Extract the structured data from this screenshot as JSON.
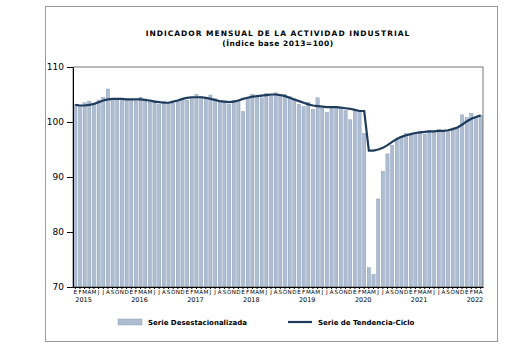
{
  "chart_data": {
    "type": "bar",
    "title": "INDICADOR MENSUAL DE LA ACTIVIDAD INDUSTRIAL",
    "subtitle": "(Índice base 2013=100)",
    "categories": [
      "E",
      "F",
      "M",
      "A",
      "M",
      "J",
      "J",
      "A",
      "S",
      "O",
      "N",
      "D",
      "E",
      "F",
      "M",
      "A",
      "M",
      "J",
      "J",
      "A",
      "S",
      "O",
      "N",
      "D",
      "E",
      "F",
      "M",
      "A",
      "M",
      "J",
      "J",
      "A",
      "S",
      "O",
      "N",
      "D",
      "E",
      "F",
      "M",
      "A",
      "M",
      "J",
      "J",
      "A",
      "S",
      "O",
      "N",
      "D",
      "E",
      "F",
      "M",
      "A",
      "M",
      "J",
      "J",
      "A",
      "S",
      "O",
      "N",
      "D",
      "E",
      "F",
      "M",
      "A",
      "M",
      "J",
      "J",
      "A",
      "S",
      "O",
      "N",
      "D",
      "E",
      "F",
      "M",
      "A",
      "M",
      "J",
      "J",
      "A",
      "S",
      "O",
      "N",
      "D",
      "E",
      "F",
      "M",
      "A"
    ],
    "year_labels": [
      "2015",
      null,
      null,
      null,
      null,
      null,
      null,
      null,
      null,
      null,
      null,
      null,
      "2016",
      null,
      null,
      null,
      null,
      null,
      null,
      null,
      null,
      null,
      null,
      null,
      "2017",
      null,
      null,
      null,
      null,
      null,
      null,
      null,
      null,
      null,
      null,
      null,
      "2018",
      null,
      null,
      null,
      null,
      null,
      null,
      null,
      null,
      null,
      null,
      null,
      "2019",
      null,
      null,
      null,
      null,
      null,
      null,
      null,
      null,
      null,
      null,
      null,
      "2020",
      null,
      null,
      null,
      null,
      null,
      null,
      null,
      null,
      null,
      null,
      null,
      "2021",
      null,
      null,
      null,
      null,
      null,
      null,
      null,
      null,
      null,
      null,
      null,
      "2022",
      null,
      null,
      null
    ],
    "series": [
      {
        "name": "Serie Desestacionalizada",
        "type": "bar",
        "color": "#aebdd2",
        "values": [
          103.2,
          102.8,
          103.5,
          103.8,
          103.4,
          104.0,
          104.5,
          106.0,
          104.3,
          103.9,
          104.2,
          104.0,
          104.1,
          103.8,
          104.5,
          104.2,
          103.6,
          103.9,
          103.2,
          103.8,
          103.5,
          103.4,
          103.9,
          104.2,
          104.0,
          104.5,
          105.0,
          104.6,
          104.2,
          104.9,
          104.3,
          103.8,
          103.6,
          103.2,
          103.9,
          103.7,
          101.9,
          104.5,
          105.0,
          104.6,
          104.4,
          105.2,
          104.8,
          105.3,
          104.9,
          105.0,
          104.6,
          104.2,
          103.2,
          102.8,
          103.6,
          102.3,
          104.4,
          102.5,
          101.7,
          102.6,
          102.8,
          102.4,
          102.1,
          100.4,
          102.3,
          101.9,
          97.9,
          73.5,
          72.3,
          86.0,
          91.0,
          94.2,
          95.8,
          96.8,
          97.4,
          97.9,
          97.6,
          98.0,
          98.3,
          97.8,
          98.4,
          98.1,
          98.6,
          98.2,
          98.3,
          98.9,
          99.0,
          101.3,
          100.8,
          101.6,
          100.9,
          101.2
        ]
      },
      {
        "name": "Serie de Tendencia-Ciclo",
        "type": "line",
        "color": "#1f3b5c",
        "values": [
          103.1,
          103.0,
          103.0,
          103.1,
          103.3,
          103.6,
          103.9,
          104.1,
          104.2,
          104.2,
          104.2,
          104.1,
          104.1,
          104.1,
          104.1,
          104.0,
          103.9,
          103.7,
          103.6,
          103.5,
          103.5,
          103.7,
          103.9,
          104.2,
          104.4,
          104.5,
          104.5,
          104.5,
          104.4,
          104.2,
          104.0,
          103.8,
          103.7,
          103.6,
          103.7,
          103.9,
          104.2,
          104.4,
          104.6,
          104.7,
          104.8,
          104.9,
          105.0,
          105.0,
          104.9,
          104.7,
          104.4,
          104.1,
          103.8,
          103.5,
          103.2,
          103.0,
          102.9,
          102.8,
          102.7,
          102.7,
          102.7,
          102.6,
          102.5,
          102.4,
          102.2,
          102.0,
          102.0,
          94.8,
          94.8,
          95.0,
          95.3,
          95.8,
          96.4,
          96.9,
          97.3,
          97.6,
          97.8,
          98.0,
          98.1,
          98.2,
          98.3,
          98.3,
          98.4,
          98.4,
          98.5,
          98.7,
          99.0,
          99.5,
          100.1,
          100.6,
          100.9,
          101.2
        ]
      }
    ],
    "ylim": [
      70,
      110
    ],
    "yticks": [
      70,
      80,
      90,
      100,
      110
    ],
    "grid": false,
    "legend": "bottom"
  }
}
